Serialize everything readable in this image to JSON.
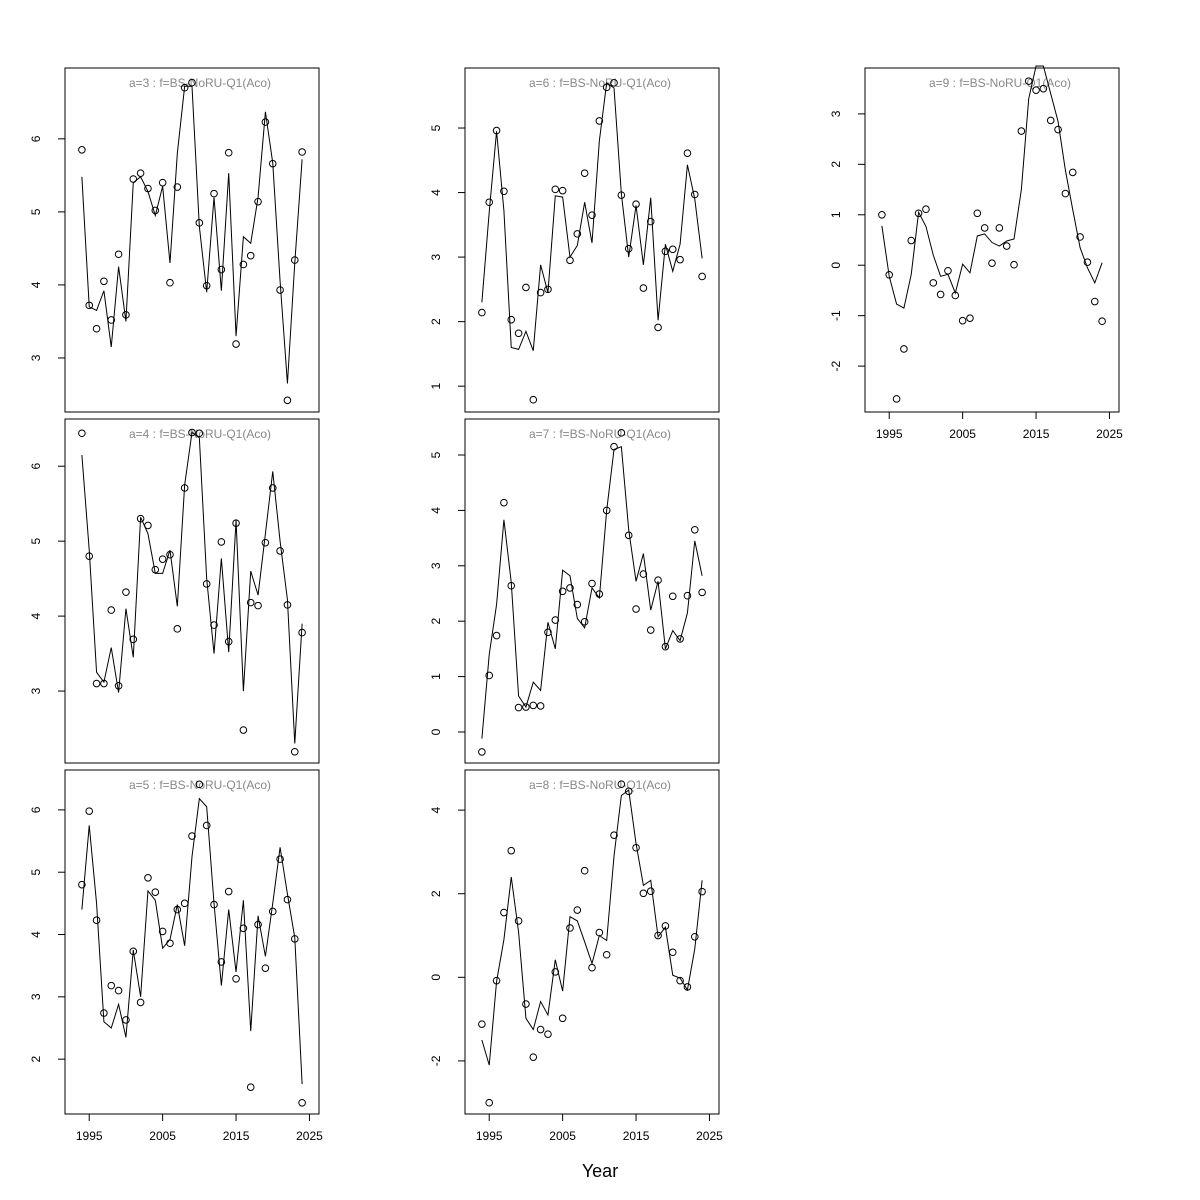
{
  "xlabel": "Year",
  "chart_data": [
    {
      "type": "points-line",
      "title": "a=3  :  f=BS-NoRU-Q1(Aco)",
      "x": [
        1994,
        1995,
        1996,
        1997,
        1998,
        1999,
        2000,
        2001,
        2002,
        2003,
        2004,
        2005,
        2006,
        2007,
        2008,
        2009,
        2010,
        2011,
        2012,
        2013,
        2014,
        2015,
        2016,
        2017,
        2018,
        2019,
        2020,
        2021,
        2022,
        2023,
        2024
      ],
      "xlim": [
        1991.7,
        2026.3
      ],
      "ylim": [
        2.26,
        6.97
      ],
      "yticks": [
        3,
        4,
        5,
        6
      ],
      "series": [
        {
          "style": "points",
          "color": "#000000",
          "values": [
            5.85,
            3.72,
            3.4,
            4.05,
            3.52,
            4.42,
            3.59,
            5.45,
            5.53,
            5.32,
            5.02,
            5.4,
            4.03,
            5.34,
            6.7,
            6.77,
            4.85,
            3.99,
            5.25,
            4.21,
            5.81,
            3.19,
            4.28,
            4.4,
            5.14,
            6.23,
            5.66,
            3.93,
            2.42,
            4.34,
            5.82
          ]
        },
        {
          "style": "line",
          "color": "#000000",
          "values": [
            5.48,
            3.7,
            3.65,
            3.92,
            3.15,
            4.25,
            3.5,
            5.4,
            5.48,
            5.28,
            4.95,
            5.35,
            4.3,
            5.8,
            6.72,
            6.72,
            4.8,
            3.9,
            5.2,
            3.92,
            5.53,
            3.3,
            4.66,
            4.57,
            5.2,
            6.37,
            5.67,
            4.05,
            2.65,
            4.3,
            5.72
          ]
        }
      ]
    },
    {
      "type": "points-line",
      "title": "a=4  :  f=BS-NoRU-Q1(Aco)",
      "x": [
        1994,
        1995,
        1996,
        1997,
        1998,
        1999,
        2000,
        2001,
        2002,
        2003,
        2004,
        2005,
        2006,
        2007,
        2008,
        2009,
        2010,
        2011,
        2012,
        2013,
        2014,
        2015,
        2016,
        2017,
        2018,
        2019,
        2020,
        2021,
        2022,
        2023,
        2024
      ],
      "xlim": [
        1991.7,
        2026.3
      ],
      "ylim": [
        2.04,
        6.63
      ],
      "yticks": [
        3,
        4,
        5,
        6
      ],
      "series": [
        {
          "style": "points",
          "color": "#000000",
          "values": [
            6.44,
            4.8,
            3.1,
            3.1,
            4.08,
            3.07,
            4.32,
            3.69,
            5.3,
            5.21,
            4.62,
            4.76,
            4.82,
            3.83,
            5.71,
            6.45,
            6.44,
            4.43,
            3.88,
            4.99,
            3.66,
            5.24,
            2.48,
            4.18,
            4.14,
            4.98,
            5.71,
            4.87,
            4.15,
            2.19,
            3.78
          ]
        },
        {
          "style": "line",
          "color": "#000000",
          "values": [
            6.15,
            4.88,
            3.25,
            3.12,
            3.58,
            2.98,
            4.1,
            3.45,
            5.32,
            5.1,
            4.57,
            4.57,
            4.88,
            4.13,
            5.75,
            6.45,
            6.38,
            4.5,
            3.5,
            4.77,
            3.52,
            5.28,
            3.0,
            4.6,
            4.28,
            5.1,
            5.93,
            5.0,
            4.22,
            2.3,
            3.9
          ]
        }
      ]
    },
    {
      "type": "points-line",
      "title": "a=5  :  f=BS-NoRU-Q1(Aco)",
      "x": [
        1994,
        1995,
        1996,
        1997,
        1998,
        1999,
        2000,
        2001,
        2002,
        2003,
        2004,
        2005,
        2006,
        2007,
        2008,
        2009,
        2010,
        2011,
        2012,
        2013,
        2014,
        2015,
        2016,
        2017,
        2018,
        2019,
        2020,
        2021,
        2022,
        2023,
        2024
      ],
      "xlim": [
        1991.7,
        2026.3
      ],
      "xticks": [
        1995,
        2005,
        2015,
        2025
      ],
      "ylim": [
        1.12,
        6.64
      ],
      "yticks": [
        2,
        3,
        4,
        5,
        6
      ],
      "series": [
        {
          "style": "points",
          "color": "#000000",
          "values": [
            4.8,
            5.98,
            4.23,
            2.74,
            3.18,
            3.1,
            2.63,
            3.73,
            2.91,
            4.91,
            4.68,
            4.05,
            3.86,
            4.4,
            4.5,
            5.58,
            6.41,
            5.75,
            4.48,
            3.56,
            4.69,
            3.29,
            4.1,
            1.55,
            4.16,
            3.46,
            4.37,
            5.21,
            4.56,
            3.93,
            1.3
          ]
        },
        {
          "style": "line",
          "color": "#000000",
          "values": [
            4.4,
            5.75,
            4.5,
            2.6,
            2.5,
            2.88,
            2.35,
            3.75,
            3.0,
            4.7,
            4.55,
            3.78,
            3.92,
            4.48,
            3.82,
            5.25,
            6.18,
            6.05,
            4.5,
            3.18,
            4.4,
            3.4,
            4.55,
            2.45,
            4.3,
            3.65,
            4.5,
            5.4,
            4.65,
            3.95,
            1.6
          ]
        }
      ]
    },
    {
      "type": "points-line",
      "title": "a=6  :  f=BS-NoRU-Q1(Aco)",
      "x": [
        1994,
        1995,
        1996,
        1997,
        1998,
        1999,
        2000,
        2001,
        2002,
        2003,
        2004,
        2005,
        2006,
        2007,
        2008,
        2009,
        2010,
        2011,
        2012,
        2013,
        2014,
        2015,
        2016,
        2017,
        2018,
        2019,
        2020,
        2021,
        2022,
        2023,
        2024
      ],
      "xlim": [
        1991.7,
        2026.3
      ],
      "ylim": [
        0.6,
        5.93
      ],
      "yticks": [
        1,
        2,
        3,
        4,
        5
      ],
      "series": [
        {
          "style": "points",
          "color": "#000000",
          "values": [
            2.14,
            3.85,
            4.96,
            4.02,
            2.03,
            1.82,
            2.53,
            0.79,
            2.45,
            2.5,
            4.05,
            4.03,
            2.95,
            3.36,
            4.3,
            3.65,
            5.11,
            5.63,
            5.7,
            3.96,
            3.13,
            3.82,
            2.52,
            3.55,
            1.91,
            3.09,
            3.12,
            2.96,
            4.61,
            3.97,
            2.7
          ]
        },
        {
          "style": "line",
          "color": "#000000",
          "values": [
            2.3,
            3.7,
            4.95,
            3.72,
            1.6,
            1.57,
            1.85,
            1.55,
            2.88,
            2.45,
            3.95,
            3.93,
            3.0,
            3.18,
            3.85,
            3.22,
            4.8,
            5.7,
            5.62,
            3.98,
            3.0,
            3.8,
            2.88,
            3.92,
            2.02,
            3.2,
            2.78,
            3.2,
            4.43,
            3.9,
            2.98
          ]
        }
      ]
    },
    {
      "type": "points-line",
      "title": "a=7  :  f=BS-NoRU-Q1(Aco)",
      "x": [
        1994,
        1995,
        1996,
        1997,
        1998,
        1999,
        2000,
        2001,
        2002,
        2003,
        2004,
        2005,
        2006,
        2007,
        2008,
        2009,
        2010,
        2011,
        2012,
        2013,
        2014,
        2015,
        2016,
        2017,
        2018,
        2019,
        2020,
        2021,
        2022,
        2023,
        2024
      ],
      "xlim": [
        1991.7,
        2026.3
      ],
      "ylim": [
        -0.56,
        5.65
      ],
      "yticks": [
        0,
        1,
        2,
        3,
        4,
        5
      ],
      "series": [
        {
          "style": "points",
          "color": "#000000",
          "values": [
            -0.36,
            1.02,
            1.74,
            4.14,
            2.64,
            0.44,
            0.45,
            0.48,
            0.47,
            1.8,
            2.02,
            2.54,
            2.6,
            2.3,
            1.99,
            2.68,
            2.49,
            4.0,
            5.15,
            5.4,
            3.55,
            2.22,
            2.85,
            1.84,
            2.74,
            1.54,
            2.45,
            1.68,
            2.46,
            3.65,
            2.52
          ]
        },
        {
          "style": "line",
          "color": "#000000",
          "values": [
            -0.12,
            1.4,
            2.3,
            3.83,
            2.7,
            0.65,
            0.45,
            0.9,
            0.75,
            1.98,
            1.5,
            2.92,
            2.82,
            2.05,
            1.88,
            2.6,
            2.42,
            4.0,
            5.1,
            5.15,
            3.65,
            2.72,
            3.22,
            2.2,
            2.72,
            1.5,
            1.83,
            1.65,
            2.15,
            3.45,
            2.82
          ]
        }
      ]
    },
    {
      "type": "points-line",
      "title": "a=8  :  f=BS-NoRU-Q1(Aco)",
      "x": [
        1994,
        1995,
        1996,
        1997,
        1998,
        1999,
        2000,
        2001,
        2002,
        2003,
        2004,
        2005,
        2006,
        2007,
        2008,
        2009,
        2010,
        2011,
        2012,
        2013,
        2014,
        2015,
        2016,
        2017,
        2018,
        2019,
        2020,
        2021,
        2022,
        2023,
        2024
      ],
      "xlim": [
        1991.7,
        2026.3
      ],
      "xticks": [
        1995,
        2005,
        2015,
        2025
      ],
      "ylim": [
        -3.27,
        4.96
      ],
      "yticks": [
        -2,
        0,
        2,
        4
      ],
      "series": [
        {
          "style": "points",
          "color": "#000000",
          "values": [
            -1.12,
            -3.0,
            -0.08,
            1.55,
            3.03,
            1.35,
            -0.64,
            -1.91,
            -1.25,
            -1.36,
            0.13,
            -0.98,
            1.18,
            1.61,
            2.55,
            0.23,
            1.07,
            0.54,
            3.4,
            4.62,
            4.45,
            3.1,
            2.01,
            2.06,
            1.0,
            1.23,
            0.6,
            -0.08,
            -0.23,
            0.97,
            2.05
          ]
        },
        {
          "style": "line",
          "color": "#000000",
          "values": [
            -1.5,
            -2.1,
            -0.1,
            0.9,
            2.4,
            1.08,
            -0.98,
            -1.25,
            -0.58,
            -0.9,
            0.42,
            -0.33,
            1.45,
            1.35,
            0.85,
            0.33,
            1.0,
            0.88,
            2.9,
            4.35,
            4.48,
            3.2,
            2.2,
            2.32,
            0.97,
            1.2,
            0.05,
            -0.02,
            -0.3,
            0.68,
            2.32
          ]
        }
      ]
    },
    {
      "type": "points-line",
      "title": "a=9  :  f=BS-NoRU-Q1(Aco)",
      "x": [
        1994,
        1995,
        1996,
        1997,
        1998,
        1999,
        2000,
        2001,
        2002,
        2003,
        2004,
        2005,
        2006,
        2007,
        2008,
        2009,
        2010,
        2011,
        2012,
        2013,
        2014,
        2015,
        2016,
        2017,
        2018,
        2019,
        2020,
        2021,
        2022,
        2023,
        2024
      ],
      "xlim": [
        1991.7,
        2026.3
      ],
      "xticks": [
        1995,
        2005,
        2015,
        2025
      ],
      "ylim": [
        -2.91,
        3.91
      ],
      "yticks": [
        -2,
        -1,
        0,
        1,
        2,
        3
      ],
      "series": [
        {
          "style": "points",
          "color": "#000000",
          "values": [
            1.0,
            -0.19,
            -2.65,
            -1.66,
            0.49,
            1.03,
            1.11,
            -0.35,
            -0.58,
            -0.11,
            -0.6,
            -1.1,
            -1.05,
            1.03,
            0.74,
            0.04,
            0.74,
            0.38,
            0.01,
            2.66,
            3.65,
            3.47,
            3.5,
            2.87,
            2.69,
            1.42,
            1.84,
            0.56,
            0.06,
            -0.72,
            -1.11
          ]
        },
        {
          "style": "line",
          "color": "#000000",
          "values": [
            0.78,
            -0.22,
            -0.77,
            -0.85,
            -0.18,
            1.05,
            0.77,
            0.2,
            -0.22,
            -0.18,
            -0.55,
            0.02,
            -0.15,
            0.58,
            0.62,
            0.45,
            0.38,
            0.48,
            0.52,
            1.5,
            3.3,
            3.95,
            3.95,
            3.4,
            2.85,
            1.88,
            1.1,
            0.35,
            -0.05,
            -0.35,
            0.05
          ]
        }
      ]
    }
  ]
}
